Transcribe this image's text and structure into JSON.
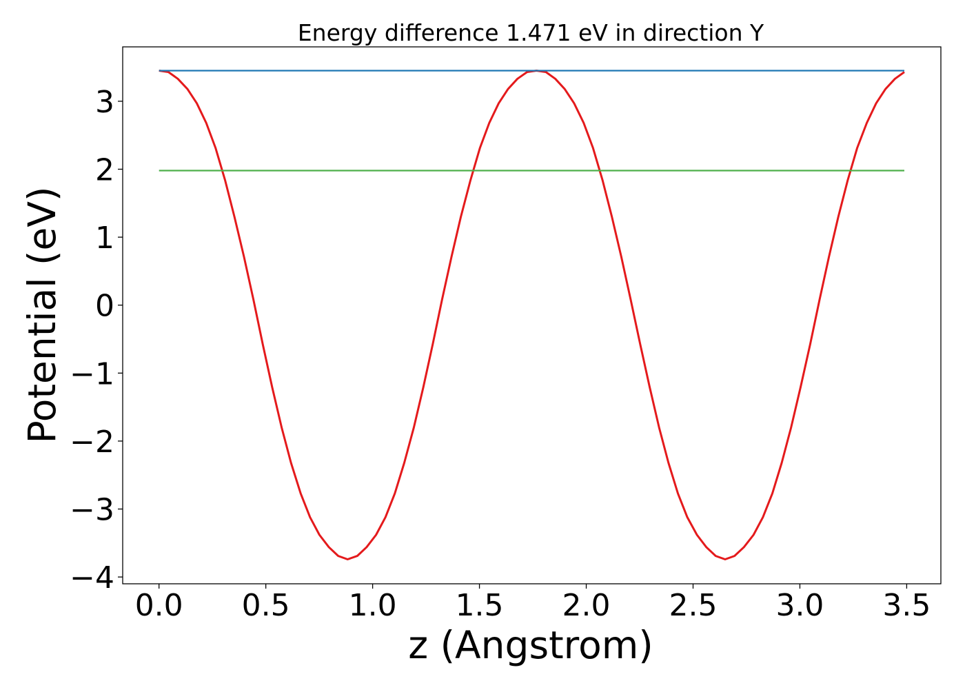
{
  "chart_data": {
    "type": "line",
    "title": "Energy difference 1.471 eV in direction Y",
    "xlabel": "z (Angstrom)",
    "ylabel": "Potential (eV)",
    "xlim": [
      -0.17,
      3.66
    ],
    "ylim": [
      -4.1,
      3.8
    ],
    "xticks": [
      0.0,
      0.5,
      1.0,
      1.5,
      2.0,
      2.5,
      3.0,
      3.5
    ],
    "xtick_labels": [
      "0.0",
      "0.5",
      "1.0",
      "1.5",
      "2.0",
      "2.5",
      "3.0",
      "3.5"
    ],
    "yticks": [
      -4,
      -3,
      -2,
      -1,
      0,
      1,
      2,
      3
    ],
    "ytick_labels": [
      "−4",
      "−3",
      "−2",
      "−1",
      "0",
      "1",
      "2",
      "3"
    ],
    "grid": false,
    "legend": "none",
    "series": [
      {
        "kind": "curve",
        "color": "#e41a1c",
        "x": [
          0.0,
          0.044,
          0.088,
          0.133,
          0.177,
          0.221,
          0.265,
          0.309,
          0.353,
          0.398,
          0.442,
          0.486,
          0.53,
          0.574,
          0.618,
          0.663,
          0.707,
          0.751,
          0.795,
          0.839,
          0.883,
          0.928,
          0.972,
          1.016,
          1.06,
          1.104,
          1.148,
          1.193,
          1.237,
          1.281,
          1.325,
          1.369,
          1.413,
          1.458,
          1.502,
          1.546,
          1.59,
          1.634,
          1.678,
          1.723,
          1.767,
          1.811,
          1.855,
          1.899,
          1.943,
          1.988,
          2.032,
          2.076,
          2.12,
          2.164,
          2.208,
          2.253,
          2.297,
          2.341,
          2.385,
          2.429,
          2.473,
          2.518,
          2.562,
          2.606,
          2.65,
          2.694,
          2.738,
          2.783,
          2.827,
          2.871,
          2.915,
          2.959,
          3.003,
          3.048,
          3.092,
          3.136,
          3.18,
          3.224,
          3.268,
          3.313,
          3.357,
          3.401,
          3.445,
          3.489
        ],
        "y": [
          3.45,
          3.43,
          3.33,
          3.18,
          2.97,
          2.68,
          2.31,
          1.84,
          1.3,
          0.71,
          0.08,
          -0.58,
          -1.21,
          -1.8,
          -2.32,
          -2.77,
          -3.12,
          -3.38,
          -3.56,
          -3.69,
          -3.74,
          -3.69,
          -3.56,
          -3.38,
          -3.12,
          -2.77,
          -2.32,
          -1.8,
          -1.21,
          -0.58,
          0.08,
          0.71,
          1.3,
          1.84,
          2.31,
          2.68,
          2.97,
          3.18,
          3.33,
          3.43,
          3.45,
          3.43,
          3.33,
          3.18,
          2.97,
          2.68,
          2.31,
          1.84,
          1.3,
          0.71,
          0.08,
          -0.58,
          -1.21,
          -1.8,
          -2.32,
          -2.77,
          -3.12,
          -3.38,
          -3.56,
          -3.69,
          -3.74,
          -3.69,
          -3.56,
          -3.38,
          -3.12,
          -2.77,
          -2.32,
          -1.8,
          -1.21,
          -0.58,
          0.08,
          0.71,
          1.3,
          1.84,
          2.31,
          2.68,
          2.97,
          3.18,
          3.33,
          3.43
        ]
      },
      {
        "kind": "hline",
        "color": "#1f77b4",
        "x": [
          0.0,
          3.489
        ],
        "y": [
          3.45,
          3.45
        ]
      },
      {
        "kind": "hline",
        "color": "#4daf4a",
        "x": [
          0.0,
          3.489
        ],
        "y": [
          1.98,
          1.98
        ]
      }
    ]
  }
}
